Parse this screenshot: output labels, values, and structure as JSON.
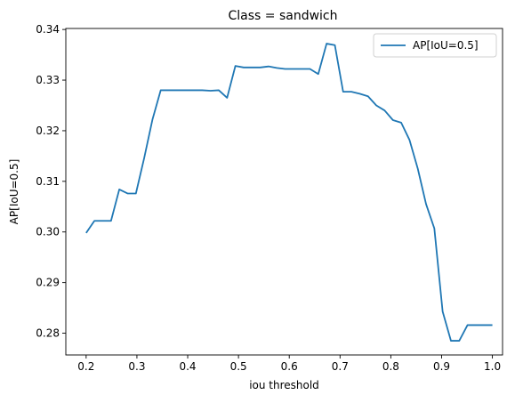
{
  "chart_data": {
    "type": "line",
    "title": "Class = sandwich",
    "xlabel": "iou threshold",
    "ylabel": "AP[IoU=0.5]",
    "xlim": [
      0.16,
      1.02
    ],
    "ylim": [
      0.2757,
      0.3402
    ],
    "xticks": [
      0.2,
      0.3,
      0.4,
      0.5,
      0.6,
      0.7,
      0.8,
      0.9,
      1.0
    ],
    "xtick_labels": [
      "0.2",
      "0.3",
      "0.4",
      "0.5",
      "0.6",
      "0.7",
      "0.8",
      "0.9",
      "1.0"
    ],
    "yticks": [
      0.28,
      0.29,
      0.3,
      0.31,
      0.32,
      0.33,
      0.34
    ],
    "ytick_labels": [
      "0.28",
      "0.29",
      "0.30",
      "0.31",
      "0.32",
      "0.33",
      "0.34"
    ],
    "grid": false,
    "legend_position": "top-right",
    "series": [
      {
        "name": "AP[IoU=0.5]",
        "color": "#1f77b4",
        "x": [
          0.2,
          0.2163,
          0.2327,
          0.249,
          0.2653,
          0.2816,
          0.298,
          0.3143,
          0.3306,
          0.3469,
          0.3633,
          0.3796,
          0.3959,
          0.4122,
          0.4286,
          0.4449,
          0.4612,
          0.4776,
          0.4939,
          0.5102,
          0.5265,
          0.5429,
          0.5592,
          0.5755,
          0.5918,
          0.6082,
          0.6245,
          0.6408,
          0.6571,
          0.6735,
          0.6898,
          0.7061,
          0.7224,
          0.7388,
          0.7551,
          0.7714,
          0.7878,
          0.8041,
          0.8204,
          0.8367,
          0.8531,
          0.8694,
          0.8857,
          0.902,
          0.9184,
          0.9347,
          0.951,
          0.9673,
          0.9837,
          1.0
        ],
        "values": [
          0.2998,
          0.3022,
          0.3022,
          0.3022,
          0.3084,
          0.3076,
          0.3076,
          0.3146,
          0.3222,
          0.328,
          0.328,
          0.328,
          0.328,
          0.328,
          0.328,
          0.3279,
          0.328,
          0.3265,
          0.3328,
          0.3325,
          0.3325,
          0.3325,
          0.3327,
          0.3324,
          0.3322,
          0.3322,
          0.3322,
          0.3322,
          0.3312,
          0.3372,
          0.3369,
          0.3277,
          0.3277,
          0.3273,
          0.3268,
          0.325,
          0.324,
          0.3221,
          0.3216,
          0.3182,
          0.3125,
          0.3055,
          0.3007,
          0.2843,
          0.2785,
          0.2785,
          0.2816,
          0.2816,
          0.2816,
          0.2816
        ]
      }
    ]
  }
}
